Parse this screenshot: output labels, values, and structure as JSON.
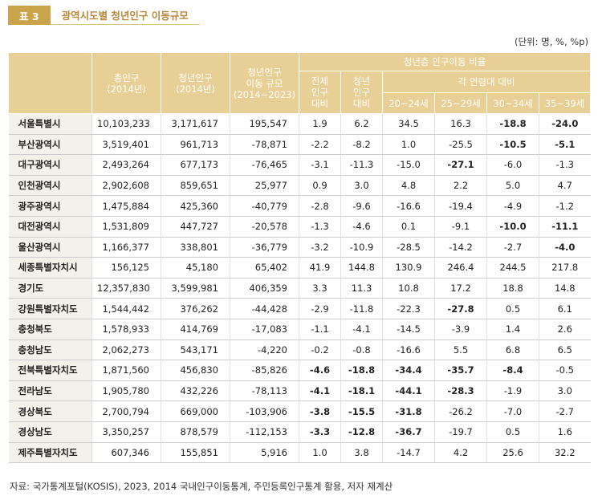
{
  "title": {
    "number": "표 3",
    "text": "광역시도별 청년인구 이동규모"
  },
  "unit": "(단위: 명, %, %p)",
  "headers": {
    "total_pop": [
      "총인구",
      "(2014년)"
    ],
    "youth_pop": [
      "청년인구",
      "(2014년)"
    ],
    "youth_move": [
      "청년인구",
      "이동 규모",
      "(2014~2023)"
    ],
    "ratio_group": "청년층 인구이동 비율",
    "total_ratio": [
      "전체",
      "인구",
      "대비"
    ],
    "youth_ratio": [
      "청년",
      "인구",
      "대비"
    ],
    "age_group": "각 연령대 대비",
    "age_20_24": "20~24세",
    "age_25_29": "25~29세",
    "age_30_34": "30~34세",
    "age_35_39": "35~39세"
  },
  "rows": [
    {
      "region": "서울특별시",
      "total": "10,103,233",
      "youth": "3,171,617",
      "move": "195,547",
      "tr": "1.9",
      "yr": "6.2",
      "a1": "34.5",
      "a2": "16.3",
      "a3": "-18.8",
      "a4": "-24.0",
      "bold": [
        "a3",
        "a4"
      ]
    },
    {
      "region": "부산광역시",
      "total": "3,519,401",
      "youth": "961,713",
      "move": "-78,871",
      "tr": "-2.2",
      "yr": "-8.2",
      "a1": "1.0",
      "a2": "-25.5",
      "a3": "-10.5",
      "a4": "-5.1",
      "bold": [
        "a3",
        "a4"
      ]
    },
    {
      "region": "대구광역시",
      "total": "2,493,264",
      "youth": "677,173",
      "move": "-76,465",
      "tr": "-3.1",
      "yr": "-11.3",
      "a1": "-15.0",
      "a2": "-27.1",
      "a3": "-6.0",
      "a4": "-1.3",
      "bold": [
        "a2"
      ]
    },
    {
      "region": "인천광역시",
      "total": "2,902,608",
      "youth": "859,651",
      "move": "25,977",
      "tr": "0.9",
      "yr": "3.0",
      "a1": "4.8",
      "a2": "2.2",
      "a3": "5.0",
      "a4": "4.7",
      "bold": []
    },
    {
      "region": "광주광역시",
      "total": "1,475,884",
      "youth": "425,360",
      "move": "-40,779",
      "tr": "-2.8",
      "yr": "-9.6",
      "a1": "-16.6",
      "a2": "-19.4",
      "a3": "-4.9",
      "a4": "-1.2",
      "bold": []
    },
    {
      "region": "대전광역시",
      "total": "1,531,809",
      "youth": "447,727",
      "move": "-20,578",
      "tr": "-1.3",
      "yr": "-4.6",
      "a1": "0.1",
      "a2": "-9.1",
      "a3": "-10.0",
      "a4": "-11.1",
      "bold": [
        "a3",
        "a4"
      ]
    },
    {
      "region": "울산광역시",
      "total": "1,166,377",
      "youth": "338,801",
      "move": "-36,779",
      "tr": "-3.2",
      "yr": "-10.9",
      "a1": "-28.5",
      "a2": "-14.2",
      "a3": "-2.7",
      "a4": "-4.0",
      "bold": [
        "a4"
      ]
    },
    {
      "region": "세종특별자치시",
      "total": "156,125",
      "youth": "45,180",
      "move": "65,402",
      "tr": "41.9",
      "yr": "144.8",
      "a1": "130.9",
      "a2": "246.4",
      "a3": "244.5",
      "a4": "217.8",
      "bold": []
    },
    {
      "region": "경기도",
      "total": "12,357,830",
      "youth": "3,599,981",
      "move": "406,359",
      "tr": "3.3",
      "yr": "11.3",
      "a1": "10.8",
      "a2": "17.2",
      "a3": "18.8",
      "a4": "14.8",
      "bold": []
    },
    {
      "region": "강원특별자치도",
      "total": "1,544,442",
      "youth": "376,262",
      "move": "-44,428",
      "tr": "-2.9",
      "yr": "-11.8",
      "a1": "-22.3",
      "a2": "-27.8",
      "a3": "0.5",
      "a4": "6.1",
      "bold": [
        "a2"
      ]
    },
    {
      "region": "충청북도",
      "total": "1,578,933",
      "youth": "414,769",
      "move": "-17,083",
      "tr": "-1.1",
      "yr": "-4.1",
      "a1": "-14.5",
      "a2": "-3.9",
      "a3": "1.4",
      "a4": "2.6",
      "bold": []
    },
    {
      "region": "충청남도",
      "total": "2,062,273",
      "youth": "543,171",
      "move": "-4,220",
      "tr": "-0.2",
      "yr": "-0.8",
      "a1": "-16.6",
      "a2": "5.5",
      "a3": "6.8",
      "a4": "6.5",
      "bold": []
    },
    {
      "region": "전북특별자치도",
      "total": "1,871,560",
      "youth": "456,830",
      "move": "-85,826",
      "tr": "-4.6",
      "yr": "-18.8",
      "a1": "-34.4",
      "a2": "-35.7",
      "a3": "-8.4",
      "a4": "-0.5",
      "bold": [
        "tr",
        "yr",
        "a1",
        "a2",
        "a3"
      ]
    },
    {
      "region": "전라남도",
      "total": "1,905,780",
      "youth": "432,226",
      "move": "-78,113",
      "tr": "-4.1",
      "yr": "-18.1",
      "a1": "-44.1",
      "a2": "-28.3",
      "a3": "-1.9",
      "a4": "3.0",
      "bold": [
        "tr",
        "yr",
        "a1",
        "a2"
      ]
    },
    {
      "region": "경상북도",
      "total": "2,700,794",
      "youth": "669,000",
      "move": "-103,906",
      "tr": "-3.8",
      "yr": "-15.5",
      "a1": "-31.8",
      "a2": "-26.2",
      "a3": "-7.0",
      "a4": "-2.7",
      "bold": [
        "tr",
        "yr",
        "a1"
      ]
    },
    {
      "region": "경상남도",
      "total": "3,350,257",
      "youth": "878,579",
      "move": "-112,153",
      "tr": "-3.3",
      "yr": "-12.8",
      "a1": "-36.7",
      "a2": "-19.7",
      "a3": "0.5",
      "a4": "1.6",
      "bold": [
        "tr",
        "yr",
        "a1"
      ]
    },
    {
      "region": "제주특별자치도",
      "total": "607,346",
      "youth": "155,851",
      "move": "5,916",
      "tr": "1.0",
      "yr": "3.8",
      "a1": "-14.7",
      "a2": "4.2",
      "a3": "25.6",
      "a4": "32.2",
      "bold": []
    }
  ],
  "source": "자료: 국가통계포털(KOSIS), 2023, 2014 국내인구이동통계, 주민등록인구통계 활용, 저자 재계산"
}
